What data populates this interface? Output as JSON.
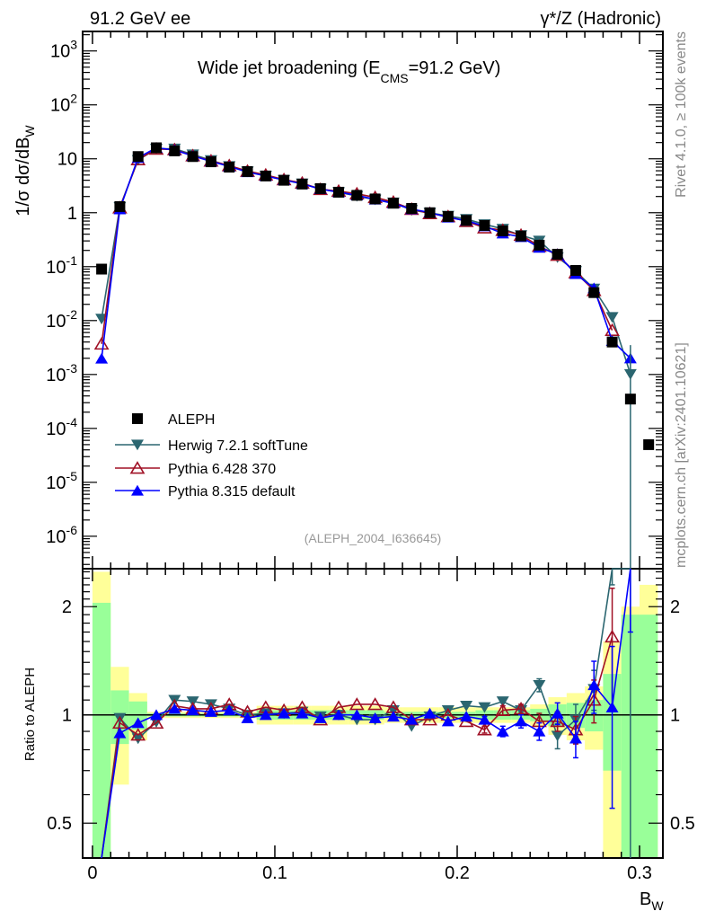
{
  "header": {
    "left": "91.2 GeV ee",
    "right": "γ*/Z (Hadronic)"
  },
  "side_text": {
    "top": "Rivet 4.1.0, ≥ 100k events",
    "bottom": "mcplots.cern.ch [arXiv:2401.10621]"
  },
  "chart_data": {
    "type": "line",
    "title_main": "Wide jet broadening (E",
    "title_sub": "CMS",
    "title_end": "=91.2 GeV)",
    "xlabel": "B",
    "xlabel_sub": "W",
    "ylabel": "1/σ  dσ/dB",
    "ylabel_sub": "W",
    "ratio_ylabel": "Ratio to ALEPH",
    "analysis_id": "(ALEPH_2004_I636645)",
    "xlim": [
      -0.0054,
      0.3128
    ],
    "ylim": [
      2.5e-07,
      2300
    ],
    "ratio_ylim": [
      0.4,
      2.55
    ],
    "x_ticks": [
      0,
      0.1,
      0.2,
      0.3
    ],
    "x_tick_labels": [
      "0",
      "0.1",
      "0.2",
      "0.3"
    ],
    "y_ticks": [
      1000,
      100,
      10,
      1,
      0.1,
      0.01,
      0.001,
      0.0001,
      1e-05,
      1e-06
    ],
    "y_tick_labels": [
      "10^3",
      "10^2",
      "10",
      "1",
      "10^-1",
      "10^-2",
      "10^-3",
      "10^-4",
      "10^-5",
      "10^-6"
    ],
    "ratio_ticks": [
      2,
      1,
      0.5
    ],
    "ratio_tick_labels": [
      "2",
      "1",
      "0.5"
    ],
    "x": [
      0.005,
      0.015,
      0.025,
      0.035,
      0.045,
      0.055,
      0.065,
      0.075,
      0.085,
      0.095,
      0.105,
      0.115,
      0.125,
      0.135,
      0.145,
      0.155,
      0.165,
      0.175,
      0.185,
      0.195,
      0.205,
      0.215,
      0.225,
      0.235,
      0.245,
      0.255,
      0.265,
      0.275,
      0.285,
      0.295,
      0.305
    ],
    "data": {
      "name": "ALEPH",
      "values": [
        0.09,
        1.3,
        11,
        16,
        14,
        11,
        8.8,
        7,
        5.8,
        4.8,
        4,
        3.4,
        2.8,
        2.4,
        2.1,
        1.8,
        1.5,
        1.2,
        1.0,
        0.85,
        0.72,
        0.58,
        0.46,
        0.37,
        0.25,
        0.17,
        0.085,
        0.033,
        0.004,
        0.00035,
        5e-05
      ],
      "stat_err_rel": [
        1.05,
        0.17,
        0.09,
        0.01,
        0.01,
        0.01,
        0.01,
        0.01,
        0.01,
        0.03,
        0.03,
        0.03,
        0.03,
        0.03,
        0.03,
        0.03,
        0.02,
        0.02,
        0.02,
        0.02,
        0.02,
        0.03,
        0.03,
        0.03,
        0.04,
        0.07,
        0.08,
        0.1,
        0.3,
        0.9,
        0.9
      ],
      "total_err_rel": [
        1.5,
        0.36,
        0.15,
        0.02,
        0.02,
        0.02,
        0.02,
        0.02,
        0.02,
        0.06,
        0.06,
        0.06,
        0.06,
        0.06,
        0.06,
        0.06,
        0.05,
        0.05,
        0.05,
        0.05,
        0.05,
        0.05,
        0.05,
        0.05,
        0.07,
        0.12,
        0.15,
        0.2,
        0.6,
        1.0,
        1.3
      ]
    },
    "series": [
      {
        "name": "Herwig 7.2.1 softTune",
        "color": "#2b6670",
        "marker": "triangle-down",
        "ratio": [
          0.12,
          0.98,
          0.86,
          0.955,
          1.1,
          1.09,
          1.07,
          1.04,
          1.0,
          1.01,
          1.01,
          1.02,
          0.99,
          1.0,
          0.97,
          0.97,
          1.03,
          0.93,
          0.99,
          1.03,
          1.06,
          1.05,
          1.09,
          1.03,
          1.21,
          0.875,
          0.97,
          1.18,
          2.9,
          2.9,
          null
        ],
        "ratio_err": [
          0,
          0,
          0,
          0,
          0,
          0,
          0,
          0,
          0,
          0,
          0,
          0,
          0,
          0,
          0,
          0,
          0,
          0,
          0,
          0,
          0,
          0,
          0,
          0.03,
          0.05,
          0.07,
          0.1,
          0.15,
          0.6,
          2.9,
          0
        ]
      },
      {
        "name": "Pythia 6.428 370",
        "color": "#a01025",
        "marker": "triangle-up-open",
        "ratio": [
          0.041,
          0.95,
          0.88,
          0.95,
          1.06,
          1.04,
          1.04,
          1.07,
          1.02,
          1.05,
          1.03,
          1.05,
          0.97,
          1.05,
          1.07,
          1.07,
          1.05,
          0.97,
          0.97,
          1.0,
          0.96,
          0.91,
          1.03,
          1.04,
          0.96,
          0.96,
          0.91,
          1.1,
          1.65,
          null,
          null
        ],
        "ratio_err": [
          0,
          0,
          0,
          0,
          0,
          0,
          0,
          0,
          0,
          0,
          0,
          0,
          0,
          0,
          0,
          0,
          0,
          0,
          0,
          0,
          0,
          0.02,
          0.03,
          0.03,
          0.05,
          0.06,
          0.08,
          0.15,
          0.6,
          0,
          0
        ]
      },
      {
        "name": "Pythia 8.315 default",
        "color": "#0000ff",
        "marker": "triangle-up",
        "ratio": [
          0.022,
          0.89,
          0.95,
          1.0,
          1.04,
          1.03,
          1.02,
          1.03,
          0.98,
          1.0,
          1.01,
          1.01,
          0.98,
          1.0,
          1.0,
          0.98,
          0.99,
          0.97,
          1.01,
          0.96,
          0.99,
          0.97,
          0.9,
          0.96,
          0.9,
          1.01,
          0.86,
          1.21,
          1.05,
          5.7,
          null
        ],
        "ratio_err": [
          0,
          0,
          0,
          0,
          0,
          0,
          0,
          0,
          0,
          0,
          0,
          0,
          0,
          0,
          0,
          0,
          0,
          0,
          0,
          0,
          0,
          0.02,
          0.03,
          0.04,
          0.05,
          0.07,
          0.1,
          0.2,
          0.5,
          4,
          0
        ]
      }
    ],
    "legend_position": "lower-left"
  }
}
